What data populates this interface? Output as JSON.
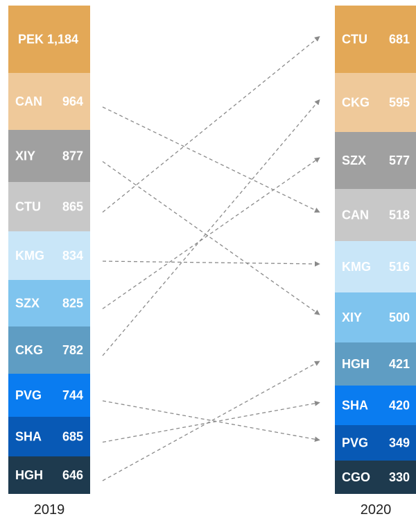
{
  "chart_data": {
    "type": "slope-ranking",
    "columns": [
      {
        "year": "2019",
        "items": [
          {
            "code": "PEK",
            "value": "1,184",
            "color": "#E3A857"
          },
          {
            "code": "CAN",
            "value": "964",
            "color": "#EFC99A"
          },
          {
            "code": "XIY",
            "value": "877",
            "color": "#A0A0A0"
          },
          {
            "code": "CTU",
            "value": "865",
            "color": "#C8C8C8"
          },
          {
            "code": "KMG",
            "value": "834",
            "color": "#C9E6F8"
          },
          {
            "code": "SZX",
            "value": "825",
            "color": "#7FC4EE"
          },
          {
            "code": "CKG",
            "value": "782",
            "color": "#5F9DC3"
          },
          {
            "code": "PVG",
            "value": "744",
            "color": "#0A7CF0"
          },
          {
            "code": "SHA",
            "value": "685",
            "color": "#0859B5"
          },
          {
            "code": "HGH",
            "value": "646",
            "color": "#1E3A4E"
          }
        ]
      },
      {
        "year": "2020",
        "items": [
          {
            "code": "CTU",
            "value": "681",
            "color": "#E3A857"
          },
          {
            "code": "CKG",
            "value": "595",
            "color": "#EFC99A"
          },
          {
            "code": "SZX",
            "value": "577",
            "color": "#A0A0A0"
          },
          {
            "code": "CAN",
            "value": "518",
            "color": "#C8C8C8"
          },
          {
            "code": "KMG",
            "value": "516",
            "color": "#C9E6F8"
          },
          {
            "code": "XIY",
            "value": "500",
            "color": "#7FC4EE"
          },
          {
            "code": "HGH",
            "value": "421",
            "color": "#5F9DC3"
          },
          {
            "code": "SHA",
            "value": "420",
            "color": "#0A7CF0"
          },
          {
            "code": "PVG",
            "value": "349",
            "color": "#0859B5"
          },
          {
            "code": "CGO",
            "value": "330",
            "color": "#1E3A4E"
          }
        ]
      }
    ],
    "connections": [
      {
        "from": "CAN",
        "to": "CAN"
      },
      {
        "from": "XIY",
        "to": "XIY"
      },
      {
        "from": "CTU",
        "to": "CTU"
      },
      {
        "from": "KMG",
        "to": "KMG"
      },
      {
        "from": "SZX",
        "to": "SZX"
      },
      {
        "from": "CKG",
        "to": "CKG"
      },
      {
        "from": "PVG",
        "to": "PVG"
      },
      {
        "from": "SHA",
        "to": "SHA"
      },
      {
        "from": "HGH",
        "to": "HGH"
      }
    ],
    "connector_color": "#8A8A8A"
  }
}
